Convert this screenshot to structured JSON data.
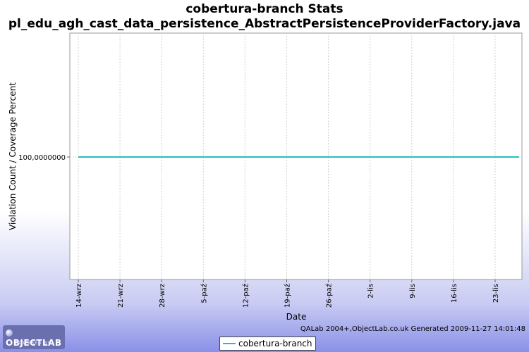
{
  "chart_data": {
    "type": "line",
    "title": "cobertura-branch  Stats",
    "subtitle": "pl_edu_agh_cast_data_persistence_AbstractPersistenceProviderFactory.java",
    "xlabel": "Date",
    "ylabel": "Violation Count / Coverage Percent",
    "x_ticks": [
      "14-wrz",
      "21-wrz",
      "28-wrz",
      "5-paź",
      "12-paź",
      "19-paź",
      "26-paź",
      "2-lis",
      "9-lis",
      "16-lis",
      "23-lis"
    ],
    "y_ticks": [
      "100,0000000"
    ],
    "series": [
      {
        "name": "cobertura-branch",
        "color": "#1fbfbf",
        "x_range": [
          "14-wrz",
          "27-lis"
        ],
        "values": [
          100,
          100
        ]
      }
    ],
    "grid": true,
    "legend": "bottom-center"
  },
  "footer": {
    "text": "QALab 2004+,ObjectLab.co.uk Generated 2009-11-27 14:01:48"
  },
  "logo": {
    "main": "OBJECTLAB",
    "sub": "POWERED BY"
  }
}
